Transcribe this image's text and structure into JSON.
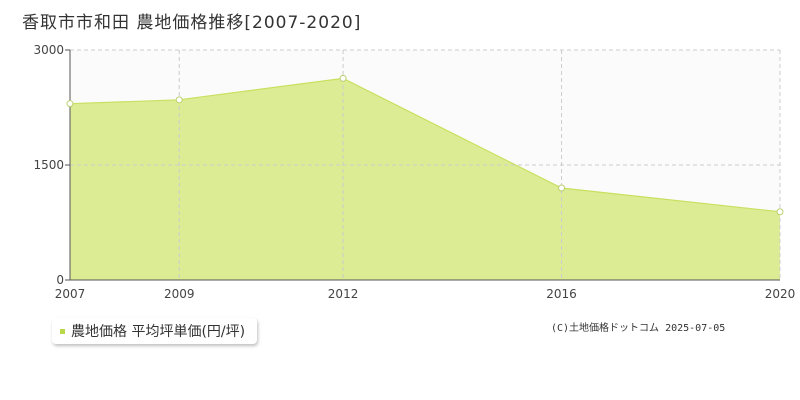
{
  "title": "香取市市和田 農地価格推移[2007-2020]",
  "chart_data": {
    "type": "area",
    "x": [
      2007,
      2009,
      2012,
      2016,
      2020
    ],
    "x_tick_labels": [
      "2007",
      "2009",
      "2012",
      "2016",
      "2020"
    ],
    "series": [
      {
        "name": "農地価格 平均坪単価(円/坪)",
        "values": [
          2300,
          2350,
          2630,
          1200,
          890
        ]
      }
    ],
    "ylim": [
      0,
      3000
    ],
    "y_ticks": [
      0,
      1500,
      3000
    ],
    "y_tick_labels": [
      "0",
      "1500",
      "3000"
    ],
    "grid": true,
    "legend_position": "bottom-left",
    "colors": {
      "fill": "#dcec94",
      "line": "#c8e060",
      "marker": "#ffffff",
      "grid": "#cccccc"
    }
  },
  "legend": {
    "label": "農地価格 平均坪単価(円/坪)",
    "color": "#b8d84a"
  },
  "credit": "(C)土地価格ドットコム 2025-07-05"
}
